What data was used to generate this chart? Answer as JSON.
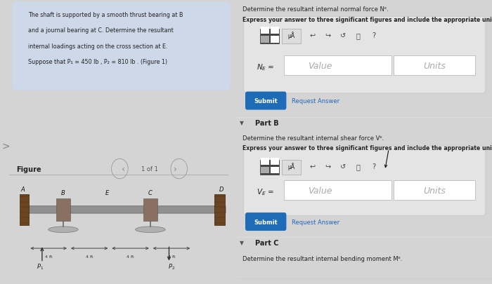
{
  "bg_left": "#d4d4d4",
  "bg_right": "#e8e8e8",
  "problem_text_bg": "#cdd8e8",
  "problem_text_lines": [
    "The shaft is supported by a smooth thrust bearing at B",
    "and a journal bearing at C. Determine the resultant",
    "internal loadings acting on the cross section at E.",
    "Suppose that P₁ = 450 lb , P₂ = 810 lb . (Figure 1)"
  ],
  "figure_label": "Figure",
  "nav_text": "1 of 1",
  "line1": "Determine the resultant internal normal force Nᴱ.",
  "line2": "Express your answer to three significant figures and include the appropriate units.",
  "ne_label": "Nᴱ =",
  "value_text": "Value",
  "units_text": "Units",
  "submit_text": "Submit",
  "req_ans_text": "Request Answer",
  "part_b_text": "Part B",
  "part_b_line1": "Determine the resultant internal shear force Vᴱ.",
  "part_b_line2": "Express your answer to three significant figures and include the appropriate units.",
  "ve_label": "Vᴱ =",
  "part_c_text": "Part C",
  "part_c_line1": "Determine the resultant internal bending moment Mᴱ.",
  "submit_blue": "#1e6bb8",
  "input_box_bg": "#e0e0e0",
  "toolbar_dark": "#555555",
  "toolbar_light": "#c8c8c8",
  "white": "#ffffff",
  "value_gray": "#aaaaaa",
  "border_color": "#bbbbbb",
  "text_dark": "#222222",
  "text_blue": "#2266bb",
  "divider": "#cccccc"
}
